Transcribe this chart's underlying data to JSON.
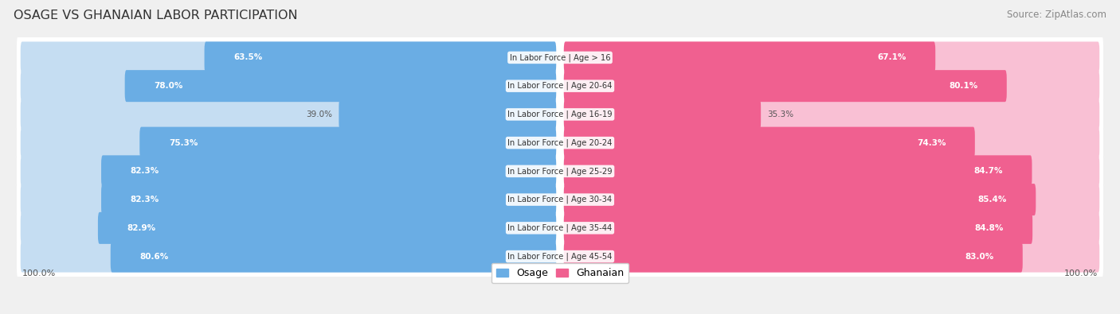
{
  "title": "OSAGE VS GHANAIAN LABOR PARTICIPATION",
  "source": "Source: ZipAtlas.com",
  "categories": [
    "In Labor Force | Age > 16",
    "In Labor Force | Age 20-64",
    "In Labor Force | Age 16-19",
    "In Labor Force | Age 20-24",
    "In Labor Force | Age 25-29",
    "In Labor Force | Age 30-34",
    "In Labor Force | Age 35-44",
    "In Labor Force | Age 45-54"
  ],
  "osage_values": [
    63.5,
    78.0,
    39.0,
    75.3,
    82.3,
    82.3,
    82.9,
    80.6
  ],
  "ghanaian_values": [
    67.1,
    80.1,
    35.3,
    74.3,
    84.7,
    85.4,
    84.8,
    83.0
  ],
  "osage_color": "#6aade4",
  "osage_color_light": "#c5ddf2",
  "ghanaian_color": "#f06090",
  "ghanaian_color_light": "#f9c0d4",
  "bg_color": "#f0f0f0",
  "row_bg": "#e8e8e8",
  "row_bg2": "#ffffff",
  "label_threshold": 50
}
